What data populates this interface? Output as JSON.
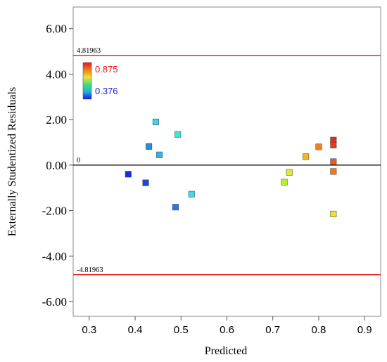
{
  "chart_data": {
    "type": "scatter",
    "xlabel": "Predicted",
    "ylabel": "Externally Studentized Residuals",
    "xlim": [
      0.265,
      0.935
    ],
    "ylim": [
      -6.65,
      6.95
    ],
    "xticks": [
      0.3,
      0.4,
      0.5,
      0.6,
      0.7,
      0.8,
      0.9
    ],
    "xtick_labels": [
      "0.3",
      "0.4",
      "0.5",
      "0.6",
      "0.7",
      "0.8",
      "0.9"
    ],
    "yticks": [
      -6,
      -4,
      -2,
      0,
      2,
      4,
      6
    ],
    "ytick_labels": [
      "-6.00",
      "-4.00",
      "-2.00",
      "0.00",
      "2.00",
      "4.00",
      "6.00"
    ],
    "reference_lines": [
      {
        "value": 4.81963,
        "label": "4.81963",
        "color": "#e8282d"
      },
      {
        "value": 0,
        "label": "0",
        "color": "#000000"
      },
      {
        "value": -4.81963,
        "label": "-4.81963",
        "color": "#e8282d"
      }
    ],
    "color_scale": {
      "max_label": "0.875",
      "min_label": "0.376",
      "max_color": "#e8141c",
      "min_color": "#1a1ae0",
      "stops": [
        "#e8141c",
        "#f07b1c",
        "#f2e030",
        "#3ee07a",
        "#1fb0e8",
        "#1a1ae0"
      ]
    },
    "points": [
      {
        "x": 0.385,
        "y": -0.4,
        "color": "#1a28e8"
      },
      {
        "x": 0.423,
        "y": -0.78,
        "color": "#2046e0"
      },
      {
        "x": 0.43,
        "y": 0.82,
        "color": "#2a8ee0"
      },
      {
        "x": 0.445,
        "y": 1.9,
        "color": "#3cd4ee"
      },
      {
        "x": 0.453,
        "y": 0.45,
        "color": "#30b4ee"
      },
      {
        "x": 0.488,
        "y": -1.85,
        "color": "#2a78e0"
      },
      {
        "x": 0.493,
        "y": 1.35,
        "color": "#3ee6d6"
      },
      {
        "x": 0.523,
        "y": -1.28,
        "color": "#40d6ee"
      },
      {
        "x": 0.725,
        "y": -0.75,
        "color": "#b4ee34"
      },
      {
        "x": 0.736,
        "y": -0.32,
        "color": "#dcec30"
      },
      {
        "x": 0.772,
        "y": 0.37,
        "color": "#f2b42c"
      },
      {
        "x": 0.8,
        "y": 0.8,
        "color": "#ee7e24"
      },
      {
        "x": 0.832,
        "y": 1.1,
        "color": "#e82a1c"
      },
      {
        "x": 0.832,
        "y": 0.88,
        "color": "#e83a1c"
      },
      {
        "x": 0.832,
        "y": 0.15,
        "color": "#ee5a22"
      },
      {
        "x": 0.832,
        "y": -0.28,
        "color": "#f0781e"
      },
      {
        "x": 0.832,
        "y": -2.15,
        "color": "#f2e22e"
      }
    ]
  }
}
